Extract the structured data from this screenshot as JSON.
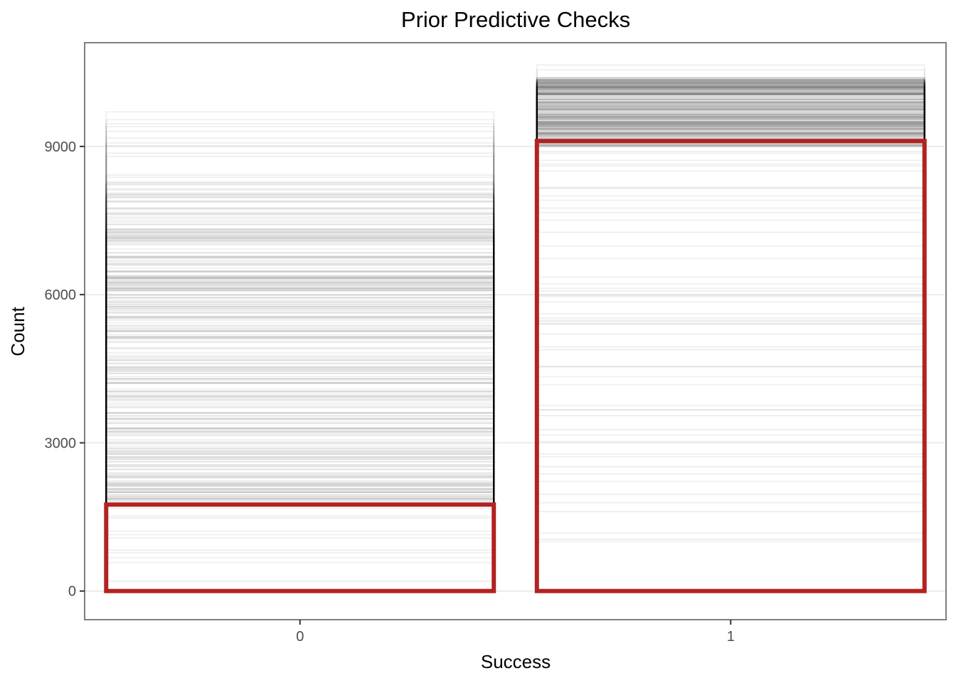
{
  "chart_data": {
    "type": "bar",
    "title": "Prior Predictive Checks",
    "xlabel": "Success",
    "ylabel": "Count",
    "categories": [
      "0",
      "1"
    ],
    "ylim": [
      -580,
      11100
    ],
    "yticks": [
      0,
      3000,
      6000,
      9000
    ],
    "ytick_labels": [
      "0",
      "3000",
      "6000",
      "9000"
    ],
    "grid": true,
    "series": [
      {
        "values": [
          1750,
          9110
        ],
        "outline_color": "#b22222"
      }
    ],
    "prior_draws": {
      "category_0_range": [
        200,
        9700
      ],
      "category_0_dense_range": [
        1700,
        8300
      ],
      "category_1_range": [
        1000,
        10650
      ],
      "category_1_dense_range": [
        9000,
        10400
      ],
      "line_color": "#000000"
    }
  }
}
